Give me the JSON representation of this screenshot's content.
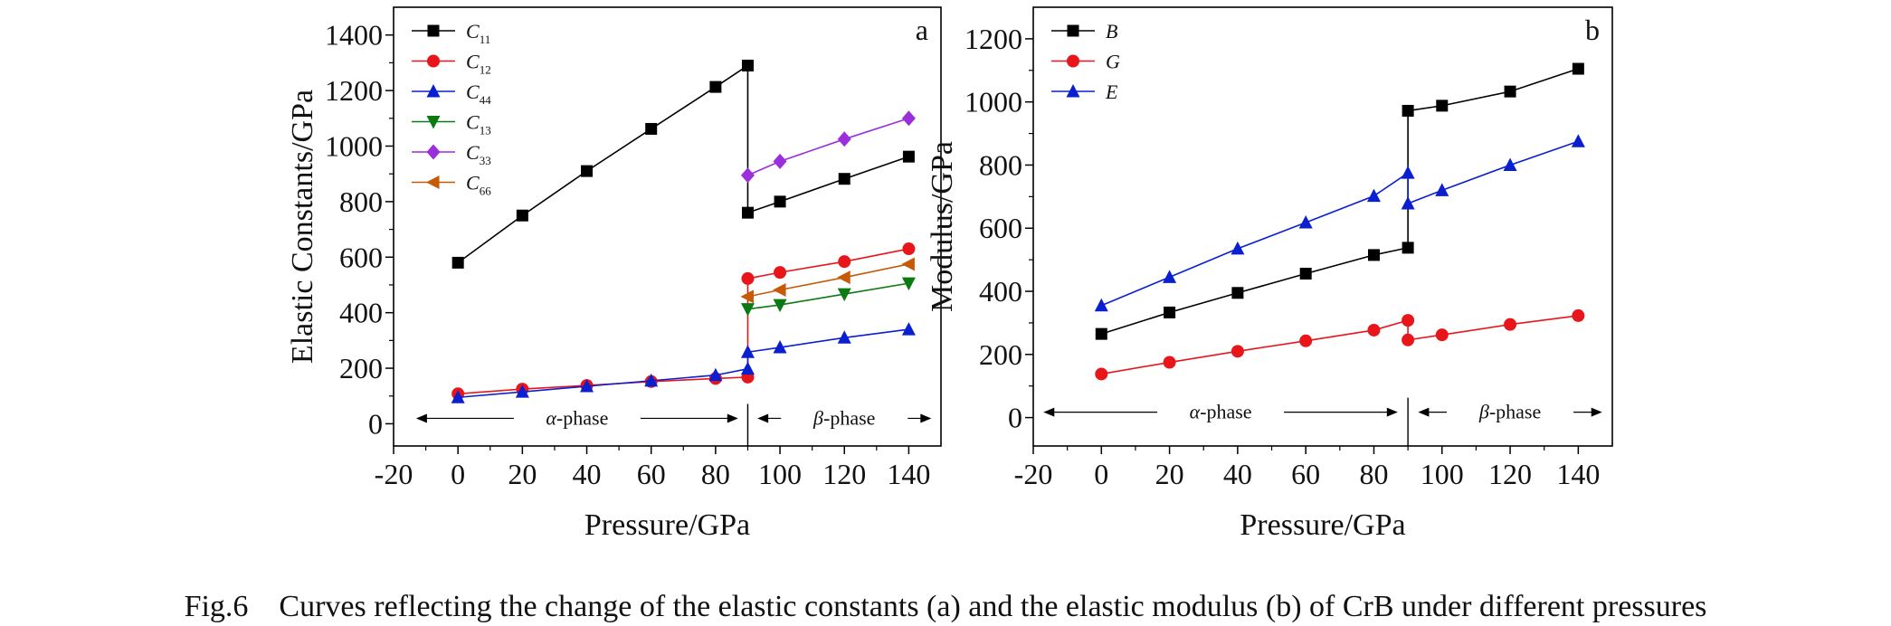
{
  "caption": "Fig.6    Curves reflecting the change of the elastic constants (a) and the elastic modulus (b) of CrB under different pressures",
  "chart_data": [
    {
      "type": "line",
      "panel_label": "a",
      "xlabel": "Pressure/GPa",
      "ylabel": "Elastic Constants/GPa",
      "xlim": [
        -20,
        150
      ],
      "ylim": [
        -80,
        1500
      ],
      "xticks": [
        -20,
        0,
        20,
        40,
        60,
        80,
        100,
        120,
        140
      ],
      "yticks": [
        0,
        200,
        400,
        600,
        800,
        1000,
        1200,
        1400
      ],
      "transition_pressure": 90,
      "phase_labels": [
        {
          "text": "-phase",
          "greek": "α",
          "from": -13,
          "to": 87
        },
        {
          "text": "-phase",
          "greek": "β",
          "from": 93,
          "to": 147
        }
      ],
      "legend": "top-left",
      "series": [
        {
          "name": "C",
          "sub": "11",
          "color": "#000000",
          "marker": "square",
          "segments": [
            [
              [
                0,
                580
              ],
              [
                20,
                750
              ],
              [
                40,
                910
              ],
              [
                60,
                1062
              ],
              [
                80,
                1213
              ],
              [
                90,
                1290
              ]
            ],
            [
              [
                90,
                760
              ],
              [
                100,
                800
              ],
              [
                120,
                882
              ],
              [
                140,
                962
              ]
            ]
          ]
        },
        {
          "name": "C",
          "sub": "12",
          "color": "#e8161b",
          "marker": "circle",
          "segments": [
            [
              [
                0,
                108
              ],
              [
                20,
                125
              ],
              [
                40,
                138
              ],
              [
                60,
                152
              ],
              [
                80,
                163
              ],
              [
                90,
                168
              ]
            ],
            [
              [
                90,
                523
              ],
              [
                100,
                545
              ],
              [
                120,
                584
              ],
              [
                140,
                630
              ]
            ]
          ]
        },
        {
          "name": "C",
          "sub": "44",
          "color": "#0a1fcf",
          "marker": "triangle-up",
          "segments": [
            [
              [
                0,
                95
              ],
              [
                20,
                115
              ],
              [
                40,
                135
              ],
              [
                60,
                155
              ],
              [
                80,
                175
              ],
              [
                90,
                198
              ]
            ],
            [
              [
                90,
                258
              ],
              [
                100,
                275
              ],
              [
                120,
                310
              ],
              [
                140,
                340
              ]
            ]
          ]
        },
        {
          "name": "C",
          "sub": "13",
          "color": "#0c7a12",
          "marker": "triangle-down",
          "segments": [
            [
              [
                90,
                413
              ],
              [
                100,
                428
              ],
              [
                120,
                467
              ],
              [
                140,
                506
              ]
            ]
          ]
        },
        {
          "name": "C",
          "sub": "33",
          "color": "#9b2fdc",
          "marker": "diamond",
          "segments": [
            [
              [
                90,
                895
              ],
              [
                100,
                945
              ],
              [
                120,
                1025
              ],
              [
                140,
                1100
              ]
            ]
          ]
        },
        {
          "name": "C",
          "sub": "66",
          "color": "#c65a07",
          "marker": "triangle-left",
          "segments": [
            [
              [
                90,
                458
              ],
              [
                100,
                482
              ],
              [
                120,
                527
              ],
              [
                140,
                575
              ]
            ]
          ]
        }
      ]
    },
    {
      "type": "line",
      "panel_label": "b",
      "xlabel": "Pressure/GPa",
      "ylabel": "Modulus/GPa",
      "xlim": [
        -20,
        150
      ],
      "ylim": [
        -90,
        1300
      ],
      "xticks": [
        -20,
        0,
        20,
        40,
        60,
        80,
        100,
        120,
        140
      ],
      "yticks": [
        0,
        200,
        400,
        600,
        800,
        1000,
        1200
      ],
      "transition_pressure": 90,
      "phase_labels": [
        {
          "text": "-phase",
          "greek": "α",
          "from": -17,
          "to": 87
        },
        {
          "text": "-phase",
          "greek": "β",
          "from": 93,
          "to": 147
        }
      ],
      "legend": "top-left",
      "series": [
        {
          "name": "B",
          "color": "#000000",
          "marker": "square",
          "segments": [
            [
              [
                0,
                265
              ],
              [
                20,
                333
              ],
              [
                40,
                395
              ],
              [
                60,
                456
              ],
              [
                80,
                515
              ],
              [
                90,
                538
              ]
            ],
            [
              [
                90,
                972
              ],
              [
                100,
                988
              ],
              [
                120,
                1033
              ],
              [
                140,
                1105
              ]
            ]
          ]
        },
        {
          "name": "G",
          "color": "#e8161b",
          "marker": "circle",
          "segments": [
            [
              [
                0,
                138
              ],
              [
                20,
                175
              ],
              [
                40,
                210
              ],
              [
                60,
                243
              ],
              [
                80,
                277
              ],
              [
                90,
                308
              ]
            ],
            [
              [
                90,
                246
              ],
              [
                100,
                262
              ],
              [
                120,
                295
              ],
              [
                140,
                323
              ]
            ]
          ]
        },
        {
          "name": "E",
          "color": "#0a1fcf",
          "marker": "triangle-up",
          "segments": [
            [
              [
                0,
                355
              ],
              [
                20,
                445
              ],
              [
                40,
                535
              ],
              [
                60,
                618
              ],
              [
                80,
                702
              ],
              [
                90,
                775
              ]
            ],
            [
              [
                90,
                678
              ],
              [
                100,
                720
              ],
              [
                120,
                800
              ],
              [
                140,
                875
              ]
            ]
          ]
        }
      ]
    }
  ]
}
